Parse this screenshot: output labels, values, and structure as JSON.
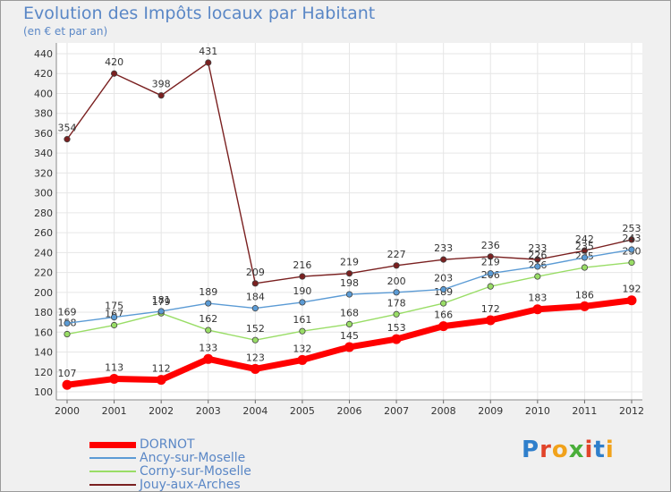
{
  "title": "Evolution des Impôts locaux par Habitant",
  "subtitle": "(en € et par an)",
  "logo_text": "Proxiti",
  "logo_colors": [
    "#2f7fcb",
    "#e1442a",
    "#f1a21b",
    "#4aae3a",
    "#e1442a",
    "#2f7fcb",
    "#f1a21b"
  ],
  "chart_data": {
    "type": "line",
    "title": "Evolution des Impôts locaux par Habitant",
    "ylabel": "(en € et par an)",
    "xlabel": "",
    "x": [
      2000,
      2001,
      2002,
      2003,
      2004,
      2005,
      2006,
      2007,
      2008,
      2009,
      2010,
      2011,
      2012
    ],
    "ylim": [
      100,
      440
    ],
    "yticks": [
      100,
      120,
      140,
      160,
      180,
      200,
      220,
      240,
      260,
      280,
      300,
      320,
      340,
      360,
      380,
      400,
      420,
      440
    ],
    "grid": true,
    "legend_position": "bottom-left",
    "series": [
      {
        "name": "DORNOT",
        "color": "#ff0000",
        "values": [
          107,
          113,
          112,
          133,
          123,
          132,
          145,
          153,
          166,
          172,
          183,
          186,
          192
        ]
      },
      {
        "name": "Ancy-sur-Moselle",
        "color": "#5b9bd5",
        "values": [
          169,
          175,
          181,
          189,
          184,
          190,
          198,
          200,
          203,
          219,
          226,
          235,
          243
        ]
      },
      {
        "name": "Corny-sur-Moselle",
        "color": "#99dd66",
        "values": [
          158,
          167,
          179,
          162,
          152,
          161,
          168,
          178,
          189,
          206,
          216,
          225,
          230
        ]
      },
      {
        "name": "Jouy-aux-Arches",
        "color": "#7a2020",
        "values": [
          354,
          420,
          398,
          431,
          209,
          216,
          219,
          227,
          233,
          236,
          233,
          242,
          253
        ]
      }
    ]
  }
}
